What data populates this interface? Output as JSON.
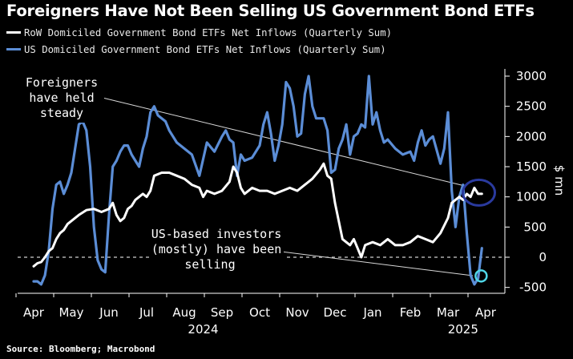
{
  "chart_data": {
    "type": "line",
    "title": "Foreigners Have Not Been Selling US Government Bond ETFs",
    "source": "Source: Bloomberg; Macrobond",
    "ylabel": "$ mn",
    "ylim": [
      -600,
      3000
    ],
    "yticks": [
      3000,
      2500,
      2000,
      1500,
      1000,
      500,
      0,
      -500
    ],
    "xlim": [
      0,
      12.55
    ],
    "months": [
      "Apr",
      "May",
      "Jun",
      "Jul",
      "Aug",
      "Sep",
      "Oct",
      "Nov",
      "Dec",
      "Jan",
      "Feb",
      "Mar",
      "Apr"
    ],
    "years": [
      {
        "label": "2024",
        "month_index": 4.5
      },
      {
        "label": "2025",
        "month_index": 11.4
      }
    ],
    "zero_line_style": "dashed",
    "series": [
      {
        "name": "RoW Domiciled Government Bond ETFs Net Inflows (Quarterly Sum)",
        "color": "#ffffff",
        "x": [
          0.0,
          0.1,
          0.2,
          0.3,
          0.4,
          0.5,
          0.6,
          0.7,
          0.8,
          0.9,
          1.0,
          1.2,
          1.4,
          1.6,
          1.8,
          2.0,
          2.1,
          2.2,
          2.3,
          2.4,
          2.5,
          2.6,
          2.7,
          2.8,
          2.9,
          3.0,
          3.1,
          3.2,
          3.4,
          3.6,
          3.8,
          4.0,
          4.2,
          4.4,
          4.5,
          4.6,
          4.8,
          5.0,
          5.2,
          5.3,
          5.4,
          5.5,
          5.6,
          5.8,
          6.0,
          6.2,
          6.4,
          6.6,
          6.8,
          7.0,
          7.2,
          7.4,
          7.6,
          7.7,
          7.8,
          7.9,
          8.0,
          8.1,
          8.2,
          8.3,
          8.4,
          8.5,
          8.6,
          8.7,
          8.8,
          9.0,
          9.2,
          9.4,
          9.6,
          9.8,
          10.0,
          10.2,
          10.4,
          10.6,
          10.8,
          11.0,
          11.1,
          11.2,
          11.3,
          11.4,
          11.5,
          11.6,
          11.7,
          11.8,
          11.9
        ],
        "values": [
          -150,
          -100,
          -80,
          0,
          100,
          150,
          300,
          400,
          450,
          550,
          600,
          700,
          780,
          800,
          750,
          800,
          900,
          700,
          600,
          650,
          800,
          850,
          950,
          1000,
          1050,
          1000,
          1100,
          1350,
          1400,
          1400,
          1350,
          1300,
          1200,
          1150,
          1000,
          1100,
          1050,
          1100,
          1250,
          1500,
          1400,
          1150,
          1050,
          1150,
          1100,
          1100,
          1050,
          1100,
          1150,
          1100,
          1200,
          1300,
          1450,
          1550,
          1350,
          1300,
          900,
          600,
          300,
          250,
          200,
          300,
          150,
          0,
          200,
          250,
          200,
          300,
          200,
          200,
          250,
          350,
          300,
          250,
          400,
          650,
          900,
          950,
          1000,
          950,
          1050,
          1000,
          1150,
          1050,
          1050
        ]
      },
      {
        "name": "US Domiciled Government Bond ETFs Net Inflows (Quarterly Sum)",
        "color": "#5b8dd6",
        "x": [
          0.0,
          0.1,
          0.2,
          0.3,
          0.4,
          0.5,
          0.6,
          0.7,
          0.8,
          0.9,
          1.0,
          1.1,
          1.2,
          1.3,
          1.4,
          1.5,
          1.6,
          1.7,
          1.8,
          1.9,
          2.0,
          2.1,
          2.2,
          2.3,
          2.4,
          2.5,
          2.6,
          2.7,
          2.8,
          2.9,
          3.0,
          3.1,
          3.2,
          3.3,
          3.4,
          3.5,
          3.6,
          3.8,
          4.0,
          4.2,
          4.4,
          4.6,
          4.8,
          5.0,
          5.1,
          5.2,
          5.3,
          5.4,
          5.5,
          5.6,
          5.8,
          6.0,
          6.1,
          6.2,
          6.3,
          6.4,
          6.5,
          6.6,
          6.7,
          6.8,
          6.9,
          7.0,
          7.1,
          7.2,
          7.3,
          7.4,
          7.5,
          7.6,
          7.7,
          7.8,
          7.9,
          8.0,
          8.1,
          8.2,
          8.3,
          8.4,
          8.5,
          8.6,
          8.7,
          8.8,
          8.9,
          9.0,
          9.1,
          9.2,
          9.3,
          9.4,
          9.6,
          9.8,
          10.0,
          10.1,
          10.2,
          10.3,
          10.4,
          10.5,
          10.6,
          10.8,
          10.9,
          11.0,
          11.1,
          11.2,
          11.3,
          11.4,
          11.5,
          11.6,
          11.7,
          11.8,
          11.9
        ],
        "values": [
          -400,
          -400,
          -450,
          -300,
          100,
          800,
          1200,
          1250,
          1050,
          1200,
          1400,
          1800,
          2200,
          2250,
          2100,
          1500,
          500,
          -50,
          -200,
          -250,
          700,
          1500,
          1600,
          1750,
          1850,
          1850,
          1700,
          1600,
          1500,
          1800,
          2000,
          2400,
          2500,
          2350,
          2300,
          2250,
          2100,
          1900,
          1800,
          1700,
          1350,
          1900,
          1750,
          2000,
          2100,
          1950,
          1900,
          1350,
          1700,
          1600,
          1650,
          1850,
          2200,
          2400,
          2050,
          1600,
          1850,
          2200,
          2900,
          2800,
          2500,
          2000,
          2050,
          2700,
          3000,
          2500,
          2300,
          2300,
          2300,
          2100,
          1400,
          1450,
          1800,
          1950,
          2200,
          1700,
          2000,
          2050,
          2200,
          2150,
          3000,
          2200,
          2400,
          2100,
          1900,
          1950,
          1800,
          1700,
          1750,
          1600,
          1900,
          2100,
          1850,
          1950,
          2000,
          1550,
          1800,
          2400,
          1100,
          500,
          1000,
          1200,
          400,
          -300,
          -450,
          -350,
          150
        ]
      }
    ],
    "annotations": [
      {
        "lines": [
          "Foreigners",
          "have held",
          "steady"
        ]
      },
      {
        "lines": [
          "US-based investors",
          "(mostly) have been",
          "selling"
        ]
      }
    ],
    "highlight_circles": [
      {
        "month_index": 11.82,
        "value": 1070,
        "color": "#2a3a9e"
      },
      {
        "month_index": 11.88,
        "value": -310,
        "color": "#4fd7e8"
      }
    ]
  }
}
